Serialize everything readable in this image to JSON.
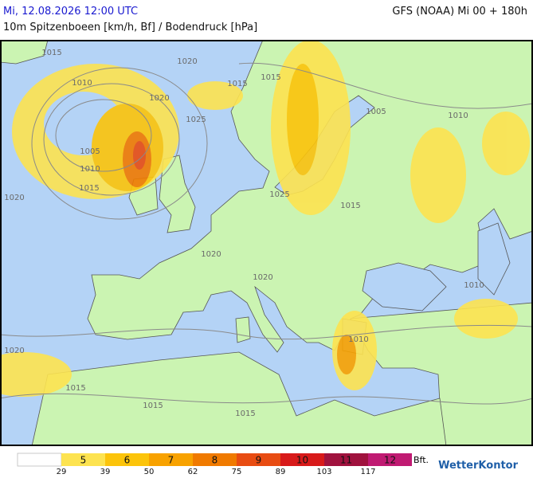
{
  "header": {
    "left": "Mi, 12.08.2026 12:00 UTC",
    "right": "GFS (NOAA) Mi 00 + 180h",
    "subtitle": "10m Spitzenboeen [km/h, Bf] / Bodendruck [hPa]"
  },
  "isobar_labels": [
    "1015",
    "1020",
    "1010",
    "1020",
    "1015",
    "1015",
    "1005",
    "1010",
    "1025",
    "1005",
    "1010",
    "1015",
    "1025",
    "1015",
    "1020",
    "1020",
    "1020",
    "1010",
    "1010",
    "1020",
    "1015",
    "1015",
    "1015"
  ],
  "legend": {
    "classes": [
      {
        "label": "5",
        "color": "#fde350"
      },
      {
        "label": "6",
        "color": "#fcc40a"
      },
      {
        "label": "7",
        "color": "#f8a200"
      },
      {
        "label": "8",
        "color": "#f07a00"
      },
      {
        "label": "9",
        "color": "#e84c12"
      },
      {
        "label": "10",
        "color": "#d81a1a"
      },
      {
        "label": "11",
        "color": "#a0123e"
      },
      {
        "label": "12",
        "color": "#c01a72"
      }
    ],
    "unit": "Bft.",
    "kmh": [
      29,
      39,
      50,
      62,
      75,
      89,
      103,
      117
    ]
  },
  "logo": "WetterKontor"
}
